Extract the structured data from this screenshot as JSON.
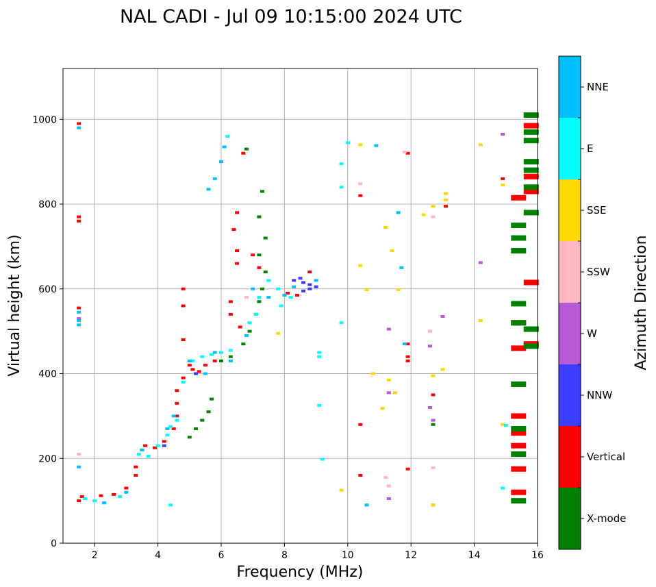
{
  "chart_data": {
    "type": "scatter",
    "title": "NAL CADI - Jul 09 10:15:00 2024 UTC",
    "xlabel": "Frequency (MHz)",
    "ylabel": "Virtual height (km)",
    "xlim": [
      1,
      16
    ],
    "ylim": [
      0,
      1120
    ],
    "xticks": [
      2,
      4,
      6,
      8,
      10,
      12,
      14,
      16
    ],
    "yticks": [
      0,
      200,
      400,
      600,
      800,
      1000
    ],
    "grid": true,
    "colorbar": {
      "title": "Azimuth Direction",
      "categories": [
        {
          "label": "X-mode",
          "color": "#008000"
        },
        {
          "label": "Vertical",
          "color": "#ff0000"
        },
        {
          "label": "NNW",
          "color": "#3c3cff"
        },
        {
          "label": "W",
          "color": "#b65ad6"
        },
        {
          "label": "SSW",
          "color": "#ffb6c1"
        },
        {
          "label": "SSE",
          "color": "#ffd700"
        },
        {
          "label": "E",
          "color": "#00ffff"
        },
        {
          "label": "NNE",
          "color": "#00bfff"
        }
      ]
    },
    "series": [
      {
        "name": "Vertical",
        "points": [
          [
            1.5,
            100
          ],
          [
            1.6,
            110
          ],
          [
            1.7,
            105
          ],
          [
            2.2,
            112
          ],
          [
            2.6,
            115
          ],
          [
            3.0,
            130
          ],
          [
            3.3,
            160
          ],
          [
            3.3,
            180
          ],
          [
            3.6,
            230
          ],
          [
            3.9,
            225
          ],
          [
            4.2,
            240
          ],
          [
            4.5,
            270
          ],
          [
            4.6,
            300
          ],
          [
            4.6,
            330
          ],
          [
            4.6,
            360
          ],
          [
            4.8,
            390
          ],
          [
            5.0,
            420
          ],
          [
            5.1,
            410
          ],
          [
            5.3,
            405
          ],
          [
            5.5,
            420
          ],
          [
            5.8,
            430
          ],
          [
            4.8,
            600
          ],
          [
            4.8,
            560
          ],
          [
            4.8,
            480
          ],
          [
            1.5,
            990
          ],
          [
            1.5,
            770
          ],
          [
            1.5,
            760
          ],
          [
            1.5,
            555
          ],
          [
            6.4,
            740
          ],
          [
            6.5,
            690
          ],
          [
            6.5,
            660
          ],
          [
            6.5,
            780
          ],
          [
            6.7,
            920
          ],
          [
            6.3,
            570
          ],
          [
            6.3,
            540
          ],
          [
            6.6,
            510
          ],
          [
            7.0,
            680
          ],
          [
            7.2,
            650
          ],
          [
            8.1,
            590
          ],
          [
            8.4,
            585
          ],
          [
            8.8,
            640
          ],
          [
            15.4,
            815
          ],
          [
            15.4,
            300
          ],
          [
            15.4,
            260
          ],
          [
            15.4,
            230
          ],
          [
            15.4,
            175
          ],
          [
            15.4,
            120
          ],
          [
            15.4,
            460
          ],
          [
            15.4,
            520
          ],
          [
            15.8,
            470
          ],
          [
            15.8,
            615
          ],
          [
            15.8,
            830
          ],
          [
            15.8,
            865
          ],
          [
            15.8,
            985
          ],
          [
            12.7,
            350
          ],
          [
            11.9,
            440
          ],
          [
            11.9,
            430
          ],
          [
            11.9,
            175
          ],
          [
            11.9,
            470
          ],
          [
            10.4,
            280
          ],
          [
            10.4,
            160
          ],
          [
            10.4,
            820
          ],
          [
            11.9,
            920
          ],
          [
            14.9,
            860
          ],
          [
            13.1,
            795
          ]
        ]
      },
      {
        "name": "X-mode",
        "points": [
          [
            5.0,
            250
          ],
          [
            5.2,
            270
          ],
          [
            5.4,
            290
          ],
          [
            5.6,
            310
          ],
          [
            5.7,
            340
          ],
          [
            6.0,
            430
          ],
          [
            6.3,
            440
          ],
          [
            6.7,
            470
          ],
          [
            6.9,
            500
          ],
          [
            7.1,
            540
          ],
          [
            7.2,
            570
          ],
          [
            7.3,
            600
          ],
          [
            7.4,
            640
          ],
          [
            7.2,
            680
          ],
          [
            7.4,
            720
          ],
          [
            7.2,
            770
          ],
          [
            7.3,
            830
          ],
          [
            6.8,
            930
          ],
          [
            15.4,
            100
          ],
          [
            15.4,
            210
          ],
          [
            15.4,
            270
          ],
          [
            15.4,
            375
          ],
          [
            15.4,
            520
          ],
          [
            15.4,
            565
          ],
          [
            15.4,
            690
          ],
          [
            15.4,
            720
          ],
          [
            15.4,
            750
          ],
          [
            15.8,
            465
          ],
          [
            15.8,
            505
          ],
          [
            15.8,
            780
          ],
          [
            15.8,
            840
          ],
          [
            15.8,
            880
          ],
          [
            15.8,
            900
          ],
          [
            15.8,
            950
          ],
          [
            15.8,
            970
          ],
          [
            15.8,
            1010
          ],
          [
            12.7,
            280
          ],
          [
            12.7,
            90
          ]
        ]
      },
      {
        "name": "NNW",
        "points": [
          [
            8.3,
            620
          ],
          [
            8.5,
            625
          ],
          [
            8.6,
            615
          ],
          [
            8.8,
            610
          ],
          [
            9.0,
            605
          ],
          [
            8.6,
            595
          ],
          [
            8.8,
            600
          ],
          [
            5.2,
            400
          ],
          [
            4.2,
            230
          ]
        ]
      },
      {
        "name": "W",
        "points": [
          [
            12.6,
            465
          ],
          [
            12.6,
            500
          ],
          [
            12.7,
            290
          ],
          [
            12.6,
            320
          ],
          [
            13.0,
            535
          ],
          [
            14.9,
            965
          ],
          [
            14.2,
            662
          ],
          [
            11.3,
            505
          ],
          [
            11.3,
            355
          ],
          [
            1.5,
            530
          ],
          [
            10.6,
            90
          ],
          [
            11.3,
            105
          ]
        ]
      },
      {
        "name": "SSW",
        "points": [
          [
            12.7,
            770
          ],
          [
            12.7,
            178
          ],
          [
            12.6,
            500
          ],
          [
            11.8,
            923
          ],
          [
            11.2,
            155
          ],
          [
            11.3,
            135
          ],
          [
            10.4,
            848
          ],
          [
            1.5,
            210
          ],
          [
            6.8,
            580
          ]
        ]
      },
      {
        "name": "SSE",
        "points": [
          [
            12.7,
            795
          ],
          [
            12.4,
            775
          ],
          [
            12.7,
            395
          ],
          [
            13.0,
            410
          ],
          [
            13.1,
            825
          ],
          [
            13.1,
            810
          ],
          [
            14.2,
            940
          ],
          [
            14.2,
            525
          ],
          [
            14.9,
            845
          ],
          [
            14.9,
            280
          ],
          [
            10.4,
            655
          ],
          [
            10.4,
            940
          ],
          [
            10.8,
            400
          ],
          [
            11.3,
            385
          ],
          [
            11.5,
            355
          ],
          [
            11.1,
            318
          ],
          [
            9.8,
            125
          ],
          [
            11.2,
            745
          ],
          [
            11.4,
            690
          ],
          [
            11.6,
            598
          ],
          [
            10.6,
            598
          ],
          [
            7.8,
            495
          ],
          [
            12.7,
            90
          ]
        ]
      },
      {
        "name": "E",
        "points": [
          [
            1.7,
            105
          ],
          [
            2.0,
            100
          ],
          [
            2.3,
            95
          ],
          [
            2.8,
            110
          ],
          [
            3.4,
            210
          ],
          [
            3.7,
            205
          ],
          [
            4.0,
            230
          ],
          [
            4.3,
            255
          ],
          [
            4.4,
            275
          ],
          [
            4.6,
            290
          ],
          [
            4.8,
            380
          ],
          [
            5.1,
            430
          ],
          [
            5.4,
            440
          ],
          [
            5.7,
            445
          ],
          [
            6.0,
            450
          ],
          [
            6.3,
            455
          ],
          [
            6.9,
            520
          ],
          [
            7.1,
            540
          ],
          [
            7.2,
            580
          ],
          [
            7.5,
            620
          ],
          [
            7.9,
            560
          ],
          [
            7.8,
            600
          ],
          [
            8.2,
            580
          ],
          [
            9.1,
            450
          ],
          [
            9.1,
            440
          ],
          [
            9.8,
            520
          ],
          [
            9.8,
            840
          ],
          [
            9.8,
            895
          ],
          [
            9.2,
            198
          ],
          [
            9.1,
            325
          ],
          [
            10.0,
            945
          ],
          [
            14.9,
            130
          ],
          [
            15.0,
            278
          ],
          [
            6.2,
            960
          ],
          [
            4.4,
            90
          ]
        ]
      },
      {
        "name": "NNE",
        "points": [
          [
            1.5,
            180
          ],
          [
            1.5,
            515
          ],
          [
            1.5,
            525
          ],
          [
            1.5,
            545
          ],
          [
            1.5,
            980
          ],
          [
            2.3,
            95
          ],
          [
            3.0,
            120
          ],
          [
            3.5,
            220
          ],
          [
            4.3,
            270
          ],
          [
            4.5,
            300
          ],
          [
            5.0,
            430
          ],
          [
            5.5,
            400
          ],
          [
            5.8,
            450
          ],
          [
            6.3,
            430
          ],
          [
            6.8,
            490
          ],
          [
            7.0,
            600
          ],
          [
            7.5,
            580
          ],
          [
            8.0,
            585
          ],
          [
            8.3,
            605
          ],
          [
            9.0,
            620
          ],
          [
            5.6,
            835
          ],
          [
            5.8,
            860
          ],
          [
            6.0,
            900
          ],
          [
            6.1,
            935
          ],
          [
            10.6,
            90
          ],
          [
            10.9,
            938
          ],
          [
            11.6,
            780
          ],
          [
            11.7,
            650
          ],
          [
            11.8,
            470
          ]
        ]
      }
    ]
  }
}
